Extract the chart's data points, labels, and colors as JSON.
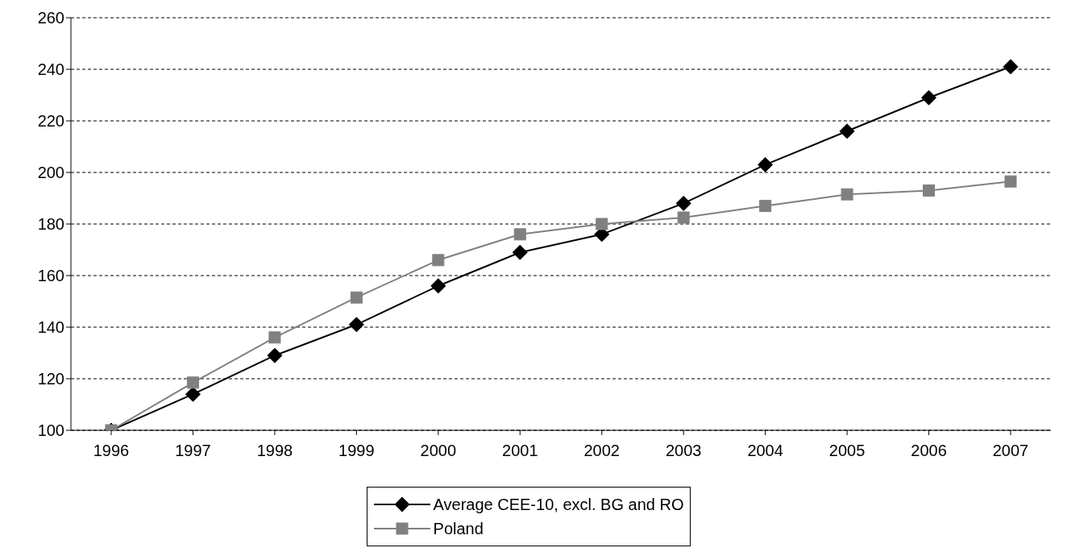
{
  "chart_data": {
    "type": "line",
    "categories": [
      "1996",
      "1997",
      "1998",
      "1999",
      "2000",
      "2001",
      "2002",
      "2003",
      "2004",
      "2005",
      "2006",
      "2007"
    ],
    "series": [
      {
        "name": "Average CEE-10, excl. BG and RO",
        "color": "#000000",
        "marker": "diamond",
        "values": [
          100,
          114,
          129,
          141,
          156,
          169,
          176,
          188,
          203,
          216,
          229,
          241
        ]
      },
      {
        "name": "Poland",
        "color": "#808080",
        "marker": "square",
        "values": [
          100,
          118.5,
          136,
          151.5,
          166,
          176,
          180,
          182.5,
          187,
          191.5,
          193,
          196.5
        ]
      }
    ],
    "ylim": [
      100,
      260
    ],
    "yticks": [
      100,
      120,
      140,
      160,
      180,
      200,
      220,
      240,
      260
    ],
    "grid": "y",
    "legend": "bottom",
    "line_style": "solid"
  }
}
